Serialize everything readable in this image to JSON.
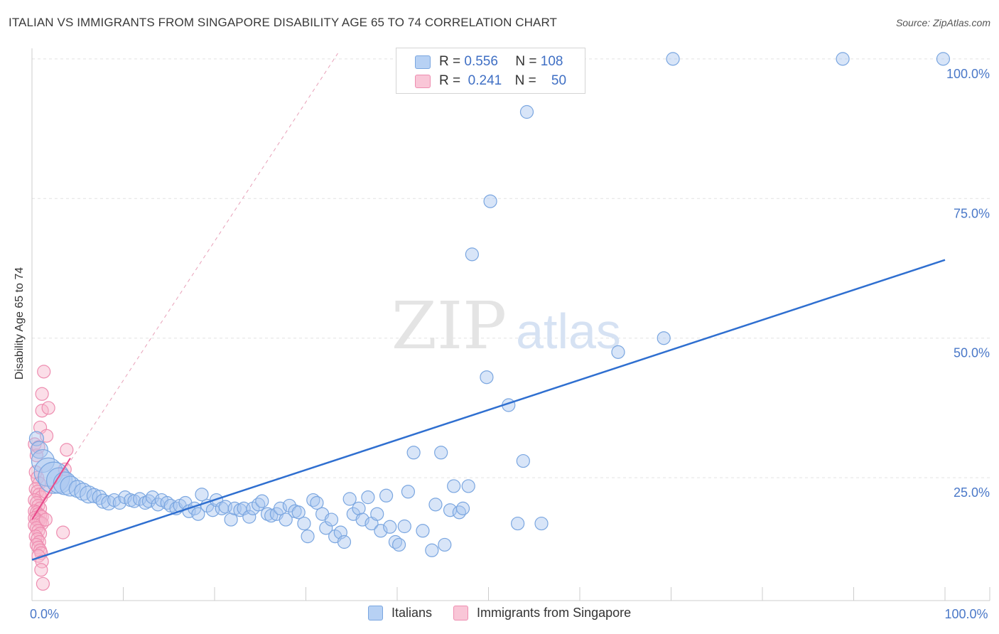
{
  "title": "ITALIAN VS IMMIGRANTS FROM SINGAPORE DISABILITY AGE 65 TO 74 CORRELATION CHART",
  "source": "Source: ZipAtlas.com",
  "watermark": {
    "zip": "ZIP",
    "atlas": "atlas"
  },
  "legend_top": [
    {
      "r_label": "R =",
      "r_value": "0.556",
      "n_label": "N =",
      "n_value": "108",
      "color": "#a8c6f0"
    },
    {
      "r_label": "R =",
      "r_value": "0.241",
      "n_label": "N =",
      "n_value": "50",
      "color": "#f7b6cc"
    }
  ],
  "legend_bottom": [
    {
      "label": "Italians",
      "color": "#a8c6f0"
    },
    {
      "label": "Immigrants from Singapore",
      "color": "#f7b6cc"
    }
  ],
  "chart_data": {
    "type": "scatter",
    "ylabel": "Disability Age 65 to 74",
    "xlim": [
      0,
      100
    ],
    "ylim": [
      3,
      101
    ],
    "x_tick_labels": [
      {
        "value": 0,
        "label": "0.0%"
      },
      {
        "value": 100,
        "label": "100.0%"
      }
    ],
    "y_tick_labels": [
      {
        "value": 25,
        "label": "25.0%"
      },
      {
        "value": 50,
        "label": "50.0%"
      },
      {
        "value": 75,
        "label": "75.0%"
      },
      {
        "value": 100,
        "label": "100.0%"
      }
    ],
    "grid": "horizontal dashed",
    "series": [
      {
        "name": "Italians",
        "color": "#a8c6f0",
        "stroke": "#7aa6e0",
        "trend": {
          "x": [
            0,
            100
          ],
          "y": [
            10.3,
            64
          ],
          "color": "#2f6fd0"
        },
        "points": [
          [
            0.5,
            32,
            10
          ],
          [
            0.8,
            30,
            12
          ],
          [
            1.2,
            28,
            16
          ],
          [
            1.8,
            26,
            20
          ],
          [
            2.4,
            25,
            22
          ],
          [
            3,
            24.5,
            18
          ],
          [
            3.6,
            24,
            16
          ],
          [
            4.2,
            23.5,
            14
          ],
          [
            5,
            23,
            12
          ],
          [
            5.6,
            22.5,
            12
          ],
          [
            6.2,
            22,
            12
          ],
          [
            6.8,
            21.8,
            10
          ],
          [
            7.4,
            21.5,
            10
          ],
          [
            7.8,
            20.8,
            10
          ],
          [
            8.4,
            20.5,
            10
          ],
          [
            9,
            21,
            9
          ],
          [
            9.6,
            20.5,
            9
          ],
          [
            10.2,
            21.5,
            9
          ],
          [
            10.8,
            21,
            9
          ],
          [
            11.2,
            20.8,
            9
          ],
          [
            11.8,
            21.2,
            9
          ],
          [
            12.4,
            20.5,
            9
          ],
          [
            12.8,
            20.8,
            9
          ],
          [
            13.2,
            21.5,
            9
          ],
          [
            13.8,
            20.2,
            9
          ],
          [
            14.2,
            21,
            9
          ],
          [
            14.8,
            20.5,
            9
          ],
          [
            15.2,
            20,
            9
          ],
          [
            15.8,
            19.5,
            9
          ],
          [
            16.2,
            20,
            9
          ],
          [
            16.8,
            20.5,
            9
          ],
          [
            17.2,
            19,
            9
          ],
          [
            17.8,
            19.5,
            9
          ],
          [
            18.2,
            18.5,
            9
          ],
          [
            18.6,
            22,
            9
          ],
          [
            19.2,
            20,
            9
          ],
          [
            19.8,
            19.2,
            9
          ],
          [
            20.2,
            21,
            9
          ],
          [
            20.8,
            19.5,
            9
          ],
          [
            21.2,
            19.8,
            9
          ],
          [
            21.8,
            17.5,
            9
          ],
          [
            22.2,
            19.5,
            9
          ],
          [
            22.8,
            19.2,
            9
          ],
          [
            23.2,
            19.5,
            9
          ],
          [
            23.8,
            18,
            9
          ],
          [
            24.2,
            19.5,
            9
          ],
          [
            24.8,
            20.2,
            9
          ],
          [
            25.2,
            20.8,
            9
          ],
          [
            25.8,
            18.5,
            9
          ],
          [
            26.2,
            18.2,
            9
          ],
          [
            26.8,
            18.5,
            9
          ],
          [
            27.2,
            19.5,
            9
          ],
          [
            27.8,
            17.5,
            9
          ],
          [
            28.2,
            20,
            9
          ],
          [
            28.8,
            19,
            9
          ],
          [
            29.2,
            18.8,
            9
          ],
          [
            29.8,
            16.8,
            9
          ],
          [
            30.2,
            14.5,
            9
          ],
          [
            30.8,
            21,
            9
          ],
          [
            31.2,
            20.5,
            9
          ],
          [
            31.8,
            18.5,
            9
          ],
          [
            32.2,
            16,
            9
          ],
          [
            32.8,
            17.5,
            9
          ],
          [
            33.2,
            14.5,
            9
          ],
          [
            33.8,
            15.2,
            9
          ],
          [
            34.2,
            13.5,
            9
          ],
          [
            34.8,
            21.2,
            9
          ],
          [
            35.2,
            18.5,
            9
          ],
          [
            35.8,
            19.5,
            9
          ],
          [
            36.2,
            17.5,
            9
          ],
          [
            36.8,
            21.5,
            9
          ],
          [
            37.2,
            16.8,
            9
          ],
          [
            37.8,
            18.5,
            9
          ],
          [
            38.2,
            15.5,
            9
          ],
          [
            38.8,
            21.8,
            9
          ],
          [
            39.2,
            16.2,
            9
          ],
          [
            39.8,
            13.5,
            9
          ],
          [
            40.2,
            13,
            9
          ],
          [
            40.8,
            16.3,
            9
          ],
          [
            41.2,
            22.5,
            9
          ],
          [
            41.8,
            29.5,
            9
          ],
          [
            42.8,
            15.5,
            9
          ],
          [
            43.8,
            12,
            9
          ],
          [
            44.8,
            29.5,
            9
          ],
          [
            44.2,
            20.2,
            9
          ],
          [
            45.2,
            13,
            9
          ],
          [
            45.8,
            19.2,
            9
          ],
          [
            46.2,
            23.5,
            9
          ],
          [
            46.8,
            18.8,
            9
          ],
          [
            47.2,
            19.5,
            9
          ],
          [
            47.8,
            23.5,
            9
          ],
          [
            48.2,
            65,
            9
          ],
          [
            49.8,
            43,
            9
          ],
          [
            50.2,
            74.5,
            9
          ],
          [
            52.2,
            38,
            9
          ],
          [
            53.2,
            16.8,
            9
          ],
          [
            53.8,
            28,
            9
          ],
          [
            54.2,
            90.5,
            9
          ],
          [
            55.8,
            16.8,
            9
          ],
          [
            64.2,
            47.5,
            9
          ],
          [
            69.2,
            50,
            9
          ],
          [
            70.2,
            100,
            9
          ],
          [
            88.8,
            100,
            9
          ],
          [
            99.8,
            100,
            9
          ]
        ]
      },
      {
        "name": "Immigrants from Singapore",
        "color": "#f7b6cc",
        "stroke": "#ee8db0",
        "trend": {
          "x": [
            0,
            4.2
          ],
          "y": [
            17.5,
            28.5
          ],
          "color": "#e8488a"
        },
        "trend_dashed": {
          "x": [
            0,
            33.5
          ],
          "y": [
            17.5,
            101
          ],
          "color": "#e8a0b8"
        },
        "points": [
          [
            0.3,
            31,
            9
          ],
          [
            0.5,
            29,
            9
          ],
          [
            0.7,
            30.5,
            9
          ],
          [
            0.9,
            34,
            9
          ],
          [
            1.1,
            37,
            9
          ],
          [
            1.1,
            40,
            9
          ],
          [
            1.3,
            44,
            9
          ],
          [
            1.8,
            37.5,
            9
          ],
          [
            1.6,
            32.5,
            9
          ],
          [
            0.4,
            26,
            9
          ],
          [
            0.6,
            25,
            9
          ],
          [
            0.8,
            24,
            9
          ],
          [
            0.4,
            23,
            9
          ],
          [
            0.6,
            22.5,
            9
          ],
          [
            0.8,
            22,
            9
          ],
          [
            1,
            21.5,
            9
          ],
          [
            0.3,
            21,
            9
          ],
          [
            0.5,
            20.5,
            9
          ],
          [
            0.7,
            20,
            9
          ],
          [
            0.9,
            19.5,
            9
          ],
          [
            0.3,
            19,
            9
          ],
          [
            0.5,
            18.8,
            9
          ],
          [
            0.7,
            18.5,
            9
          ],
          [
            0.9,
            18.2,
            9
          ],
          [
            1.1,
            18,
            9
          ],
          [
            0.3,
            17.8,
            9
          ],
          [
            0.5,
            17.5,
            9
          ],
          [
            0.7,
            17.2,
            9
          ],
          [
            0.9,
            17,
            9
          ],
          [
            1.1,
            16.8,
            9
          ],
          [
            0.3,
            16.5,
            9
          ],
          [
            0.5,
            16,
            9
          ],
          [
            0.7,
            15.5,
            9
          ],
          [
            0.9,
            15,
            9
          ],
          [
            0.4,
            14.5,
            9
          ],
          [
            0.6,
            14,
            9
          ],
          [
            0.8,
            13.5,
            9
          ],
          [
            0.5,
            13,
            9
          ],
          [
            0.7,
            12.5,
            9
          ],
          [
            0.9,
            12,
            9
          ],
          [
            1,
            11.5,
            9
          ],
          [
            0.7,
            11,
            9
          ],
          [
            1.1,
            10,
            9
          ],
          [
            1,
            8.5,
            9
          ],
          [
            1.2,
            6,
            9
          ],
          [
            3.8,
            30,
            9
          ],
          [
            3.6,
            26.5,
            9
          ],
          [
            1.5,
            22.5,
            9
          ],
          [
            1.5,
            17.5,
            9
          ],
          [
            3.4,
            15.2,
            9
          ]
        ]
      }
    ]
  }
}
